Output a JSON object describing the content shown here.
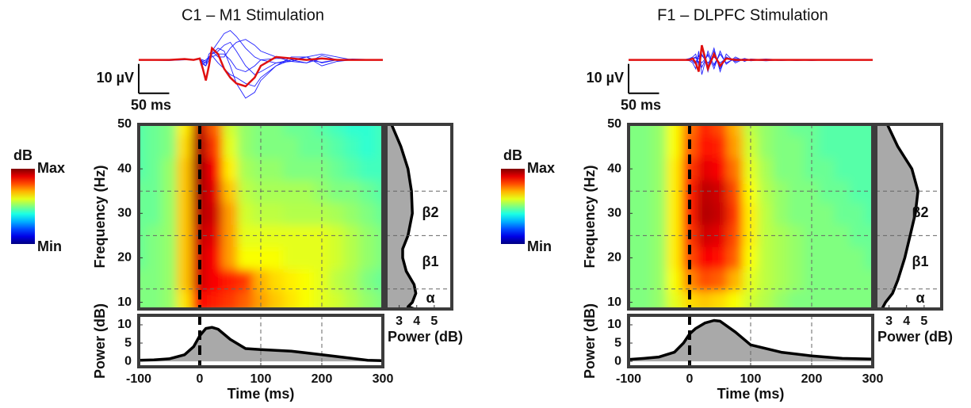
{
  "chart_data": [
    {
      "type": "line",
      "title": "C1 – M1 Stimulation",
      "x": [
        -100,
        -50,
        -25,
        -10,
        0,
        5,
        10,
        15,
        20,
        30,
        40,
        50,
        60,
        75,
        90,
        100,
        125,
        150,
        175,
        200,
        225,
        250,
        300
      ],
      "xlim": [
        -100,
        300
      ],
      "ylim": [
        -16,
        15
      ],
      "scale_bar": {
        "x": 50,
        "y": 10,
        "x_label": "50 ms",
        "y_label": "10 µV"
      },
      "series": [
        {
          "color": "#2020ff",
          "values": [
            0,
            0,
            0,
            0,
            0.5,
            -1,
            -2,
            0,
            3,
            6,
            9,
            10,
            8,
            4,
            1,
            0,
            -1,
            -0.5,
            1,
            2,
            1,
            0,
            0
          ]
        },
        {
          "color": "#2020ff",
          "values": [
            0,
            0,
            0,
            0,
            0.3,
            -0.5,
            -1,
            1,
            2,
            4,
            3,
            -2,
            -8,
            -13,
            -11,
            -7,
            -2,
            0,
            1,
            -1,
            0,
            0.3,
            0
          ]
        },
        {
          "color": "#2020ff",
          "values": [
            0,
            0.2,
            0,
            0,
            0.3,
            -1,
            -1,
            1,
            2,
            3,
            5,
            6,
            3,
            -2,
            -5,
            -4,
            -1,
            0,
            -1,
            1.5,
            0,
            0,
            0
          ]
        },
        {
          "color": "#2020ff",
          "values": [
            0,
            0,
            0.2,
            0,
            0.2,
            -0.5,
            0,
            1,
            1.5,
            -1,
            -3,
            -5,
            -6,
            -8,
            -9,
            -6,
            -2,
            1,
            1,
            -2,
            -0.5,
            0,
            0
          ]
        },
        {
          "color": "#2020ff",
          "values": [
            0,
            -0.2,
            0,
            0,
            0.4,
            -1.5,
            -2,
            2,
            3,
            1,
            1,
            4,
            6,
            7,
            5,
            3,
            1,
            -0.5,
            -1,
            0.5,
            0,
            0,
            0
          ]
        },
        {
          "color": "#2020ff",
          "values": [
            0,
            0,
            0,
            0,
            0.3,
            0,
            -0.5,
            0.5,
            1,
            2,
            2,
            0,
            -3,
            -4,
            -2,
            0,
            0.5,
            0.5,
            0,
            -0.8,
            0,
            0,
            0
          ]
        },
        {
          "color": "#e01010",
          "values": [
            0,
            0,
            0.3,
            0,
            0.5,
            -3,
            -7,
            -2,
            4,
            2,
            -3,
            -6,
            -8,
            -9,
            -6,
            -2,
            1,
            0.5,
            0,
            0.5,
            0,
            0,
            0
          ]
        }
      ]
    },
    {
      "type": "heatmap",
      "ylabel": "Frequency (Hz)",
      "colormap": "jet",
      "x": [
        -100,
        -75,
        -50,
        -25,
        0,
        25,
        50,
        75,
        100,
        125,
        150,
        175,
        200,
        225,
        250,
        275,
        300
      ],
      "y": [
        10,
        15,
        20,
        25,
        30,
        35,
        40,
        45,
        50
      ],
      "xlim": [
        -100,
        300
      ],
      "ylim": [
        8.5,
        50
      ],
      "yticks": [
        10,
        20,
        30,
        40,
        50
      ],
      "event": 0,
      "vlines": [
        100,
        200
      ],
      "hlines": [
        13,
        25,
        35
      ],
      "clim": [
        0,
        1
      ],
      "colorbar": {
        "label": "dB",
        "ticks": [
          {
            "value": 1,
            "label": "Max"
          },
          {
            "value": 0,
            "label": "Min"
          }
        ]
      },
      "values": [
        [
          0.5,
          0.5,
          0.52,
          0.65,
          0.88,
          0.85,
          0.82,
          0.78,
          0.72,
          0.68,
          0.65,
          0.62,
          0.6,
          0.58,
          0.55,
          0.52,
          0.5
        ],
        [
          0.5,
          0.5,
          0.52,
          0.68,
          0.92,
          0.88,
          0.85,
          0.82,
          0.7,
          0.66,
          0.64,
          0.62,
          0.6,
          0.56,
          0.54,
          0.5,
          0.48
        ],
        [
          0.48,
          0.5,
          0.52,
          0.68,
          0.92,
          0.88,
          0.72,
          0.62,
          0.62,
          0.62,
          0.6,
          0.6,
          0.6,
          0.58,
          0.55,
          0.52,
          0.5
        ],
        [
          0.48,
          0.5,
          0.52,
          0.68,
          0.93,
          0.9,
          0.72,
          0.6,
          0.6,
          0.6,
          0.6,
          0.6,
          0.6,
          0.58,
          0.55,
          0.52,
          0.5
        ],
        [
          0.48,
          0.48,
          0.52,
          0.68,
          0.95,
          0.92,
          0.72,
          0.58,
          0.56,
          0.56,
          0.55,
          0.55,
          0.55,
          0.54,
          0.52,
          0.5,
          0.48
        ],
        [
          0.48,
          0.48,
          0.52,
          0.68,
          0.96,
          0.9,
          0.68,
          0.56,
          0.54,
          0.54,
          0.54,
          0.54,
          0.52,
          0.5,
          0.5,
          0.48,
          0.46
        ],
        [
          0.46,
          0.48,
          0.52,
          0.68,
          0.97,
          0.88,
          0.64,
          0.54,
          0.52,
          0.52,
          0.5,
          0.5,
          0.5,
          0.48,
          0.46,
          0.44,
          0.44
        ],
        [
          0.46,
          0.48,
          0.5,
          0.66,
          0.96,
          0.82,
          0.6,
          0.52,
          0.5,
          0.5,
          0.5,
          0.48,
          0.48,
          0.46,
          0.44,
          0.42,
          0.44
        ],
        [
          0.46,
          0.48,
          0.5,
          0.64,
          0.94,
          0.78,
          0.58,
          0.52,
          0.5,
          0.5,
          0.48,
          0.48,
          0.46,
          0.44,
          0.42,
          0.42,
          0.44
        ]
      ]
    },
    {
      "type": "area",
      "orientation": "horizontal",
      "xlabel": "Power (dB)",
      "y": [
        8.5,
        9,
        10,
        12,
        14,
        17,
        20,
        22,
        25,
        30,
        35,
        40,
        45,
        50
      ],
      "values": [
        3.9,
        3.5,
        3.75,
        3.95,
        3.85,
        3.4,
        3.2,
        3.2,
        3.5,
        3.75,
        3.7,
        3.5,
        3.1,
        2.56
      ],
      "xlim": [
        2.25,
        6
      ],
      "xticks": [
        3,
        4,
        5
      ],
      "ylim": [
        8.5,
        50
      ],
      "hlines": [
        13,
        25,
        35
      ],
      "bands": [
        "α",
        "β1",
        "β2"
      ]
    },
    {
      "type": "area",
      "xlabel": "Time (ms)",
      "ylabel": "Power (dB)",
      "x": [
        -100,
        -75,
        -50,
        -25,
        -10,
        0,
        10,
        20,
        30,
        50,
        75,
        100,
        150,
        200,
        250,
        275,
        300
      ],
      "values": [
        0.3,
        0.4,
        0.7,
        1.8,
        4,
        7,
        9,
        9.3,
        8.8,
        6,
        3.5,
        3.2,
        2.8,
        1.8,
        0.8,
        0.3,
        0.2
      ],
      "xlim": [
        -100,
        300
      ],
      "xticks": [
        -100,
        0,
        100,
        200,
        300
      ],
      "ylim": [
        -1.5,
        12.6
      ],
      "yticks": [
        0,
        5,
        10
      ],
      "event": 0,
      "vlines": [
        100,
        200
      ]
    },
    {
      "type": "line",
      "title": "F1 – DLPFC Stimulation",
      "x": [
        -100,
        -50,
        -25,
        -10,
        0,
        5,
        10,
        15,
        20,
        30,
        40,
        50,
        60,
        75,
        90,
        100,
        125,
        150,
        175,
        200,
        225,
        250,
        300
      ],
      "xlim": [
        -100,
        300
      ],
      "ylim": [
        -16,
        15
      ],
      "scale_bar": {
        "x": 50,
        "y": 10,
        "x_label": "50 ms",
        "y_label": "10 µV"
      },
      "series": [
        {
          "color": "#2020ff",
          "values": [
            0,
            0,
            0,
            0,
            0.5,
            1,
            2,
            -2,
            4,
            -4,
            3,
            -3,
            1,
            -0.5,
            0.3,
            0,
            -0.3,
            0,
            0.2,
            0,
            0,
            0,
            0
          ]
        },
        {
          "color": "#2020ff",
          "values": [
            0,
            0,
            0,
            0,
            -0.3,
            -1,
            -3,
            3,
            -5,
            3,
            -2,
            2,
            -1,
            0.5,
            0,
            0.2,
            0,
            -0.2,
            0,
            0,
            0,
            0,
            0
          ]
        },
        {
          "color": "#2020ff",
          "values": [
            0,
            0,
            0,
            0,
            0.3,
            0.5,
            1,
            -1,
            2,
            -2,
            4,
            -4,
            2,
            -1,
            0.5,
            0,
            0.3,
            0,
            -0.2,
            0,
            0.2,
            0,
            0
          ]
        },
        {
          "color": "#2020ff",
          "values": [
            0,
            0,
            0,
            0,
            0.2,
            -0.5,
            -1.5,
            1.5,
            -2.5,
            2,
            -3,
            3,
            -1.5,
            1,
            -0.5,
            0.3,
            0,
            0.2,
            0,
            -0.2,
            0,
            0,
            0
          ]
        },
        {
          "color": "#2020ff",
          "values": [
            0,
            0,
            0,
            0,
            0,
            0.3,
            0.8,
            -0.8,
            1.5,
            -1,
            1,
            -1,
            0.5,
            -0.3,
            0.5,
            -0.3,
            0.2,
            0,
            0,
            0,
            0,
            0,
            0
          ]
        },
        {
          "color": "#2020ff",
          "values": [
            0,
            0,
            0,
            0,
            0,
            -0.3,
            -0.5,
            0.5,
            -1,
            1.5,
            -1.5,
            2,
            -1,
            0.5,
            -0.3,
            0.2,
            0,
            0,
            0,
            0,
            0,
            0,
            0
          ]
        },
        {
          "color": "#e01010",
          "values": [
            0,
            0,
            0,
            0,
            0,
            0.5,
            -1,
            -4,
            5,
            -3,
            2,
            -2,
            0.5,
            0,
            0,
            0,
            0,
            0,
            0,
            0,
            0,
            0,
            0
          ]
        }
      ]
    },
    {
      "type": "heatmap",
      "ylabel": "Frequency (Hz)",
      "colormap": "jet",
      "x": [
        -100,
        -75,
        -50,
        -25,
        0,
        25,
        50,
        75,
        100,
        125,
        150,
        175,
        200,
        225,
        250,
        275,
        300
      ],
      "y": [
        10,
        15,
        20,
        25,
        30,
        35,
        40,
        45,
        50
      ],
      "xlim": [
        -100,
        300
      ],
      "ylim": [
        8.5,
        50
      ],
      "yticks": [
        10,
        20,
        30,
        40,
        50
      ],
      "event": 0,
      "vlines": [
        100,
        200
      ],
      "hlines": [
        13,
        25,
        35
      ],
      "clim": [
        0,
        1
      ],
      "colorbar": {
        "label": "dB",
        "ticks": [
          {
            "value": 1,
            "label": "Max"
          },
          {
            "value": 0,
            "label": "Min"
          }
        ]
      },
      "values": [
        [
          0.5,
          0.5,
          0.52,
          0.6,
          0.66,
          0.68,
          0.66,
          0.62,
          0.58,
          0.55,
          0.52,
          0.5,
          0.5,
          0.5,
          0.5,
          0.5,
          0.5
        ],
        [
          0.5,
          0.5,
          0.52,
          0.62,
          0.74,
          0.8,
          0.78,
          0.7,
          0.6,
          0.56,
          0.54,
          0.52,
          0.5,
          0.5,
          0.5,
          0.5,
          0.5
        ],
        [
          0.5,
          0.5,
          0.52,
          0.64,
          0.8,
          0.88,
          0.86,
          0.78,
          0.62,
          0.56,
          0.54,
          0.52,
          0.5,
          0.5,
          0.5,
          0.5,
          0.48
        ],
        [
          0.5,
          0.5,
          0.52,
          0.64,
          0.82,
          0.92,
          0.9,
          0.8,
          0.64,
          0.56,
          0.54,
          0.52,
          0.5,
          0.5,
          0.5,
          0.48,
          0.48
        ],
        [
          0.5,
          0.5,
          0.52,
          0.64,
          0.84,
          0.95,
          0.93,
          0.82,
          0.64,
          0.56,
          0.52,
          0.5,
          0.5,
          0.5,
          0.48,
          0.48,
          0.46
        ],
        [
          0.5,
          0.5,
          0.52,
          0.64,
          0.84,
          0.94,
          0.92,
          0.8,
          0.62,
          0.55,
          0.52,
          0.5,
          0.5,
          0.48,
          0.48,
          0.46,
          0.46
        ],
        [
          0.5,
          0.5,
          0.52,
          0.64,
          0.82,
          0.9,
          0.88,
          0.76,
          0.6,
          0.54,
          0.5,
          0.5,
          0.48,
          0.48,
          0.46,
          0.46,
          0.46
        ],
        [
          0.5,
          0.5,
          0.52,
          0.62,
          0.78,
          0.86,
          0.84,
          0.72,
          0.58,
          0.52,
          0.5,
          0.5,
          0.48,
          0.46,
          0.46,
          0.46,
          0.46
        ],
        [
          0.5,
          0.5,
          0.52,
          0.62,
          0.76,
          0.84,
          0.8,
          0.7,
          0.56,
          0.52,
          0.5,
          0.48,
          0.48,
          0.46,
          0.46,
          0.46,
          0.46
        ]
      ]
    },
    {
      "type": "area",
      "orientation": "horizontal",
      "xlabel": "Power (dB)",
      "y": [
        8.5,
        10,
        12,
        15,
        20,
        25,
        30,
        35,
        40,
        45,
        50
      ],
      "values": [
        2.6,
        2.8,
        3.2,
        3.5,
        3.9,
        4.2,
        4.5,
        4.65,
        4.3,
        3.5,
        2.9
      ],
      "xlim": [
        2.25,
        6
      ],
      "xticks": [
        3,
        4,
        5
      ],
      "ylim": [
        8.5,
        50
      ],
      "hlines": [
        13,
        25,
        35
      ],
      "bands": [
        "α",
        "β1",
        "β2"
      ]
    },
    {
      "type": "area",
      "xlabel": "Time (ms)",
      "ylabel": "Power (dB)",
      "x": [
        -100,
        -75,
        -50,
        -25,
        -10,
        0,
        10,
        25,
        40,
        50,
        75,
        100,
        150,
        200,
        250,
        300
      ],
      "values": [
        0.5,
        0.8,
        1.2,
        2.5,
        5,
        7.5,
        9,
        10.5,
        11.2,
        11,
        8,
        4.5,
        2.5,
        1.5,
        0.8,
        0.6
      ],
      "xlim": [
        -100,
        300
      ],
      "xticks": [
        -100,
        0,
        100,
        200,
        300
      ],
      "ylim": [
        -1.5,
        12.6
      ],
      "yticks": [
        0,
        5,
        10
      ],
      "event": 0,
      "vlines": [
        100,
        200
      ]
    }
  ]
}
